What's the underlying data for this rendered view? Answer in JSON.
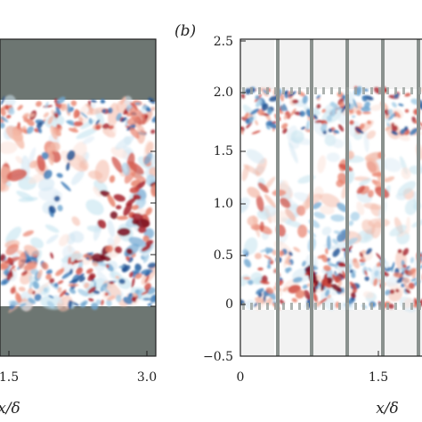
{
  "chart_data": [
    {
      "type": "heatmap",
      "panel": "",
      "xlabel": "x/δ",
      "ylabel": "",
      "x_ticks": [
        "1.5",
        "3.0"
      ],
      "xlim": [
        0,
        3.0
      ],
      "ylim": [
        -0.5,
        2.5
      ],
      "wall_color": "#6d7672",
      "colormap": "diverging red-white-blue",
      "grid": false
    },
    {
      "type": "heatmap",
      "panel": "(b)",
      "xlabel": "x/δ",
      "ylabel": "",
      "x_ticks": [
        "0",
        "1.5"
      ],
      "y_ticks": [
        "−0.5",
        "0",
        "0.5",
        "1.0",
        "1.5",
        "2.0",
        "2.5"
      ],
      "xlim": [
        0,
        3.0
      ],
      "ylim": [
        -0.5,
        2.5
      ],
      "rib_color": "#8a918e",
      "colormap": "diverging red-white-blue",
      "grid": false
    }
  ]
}
